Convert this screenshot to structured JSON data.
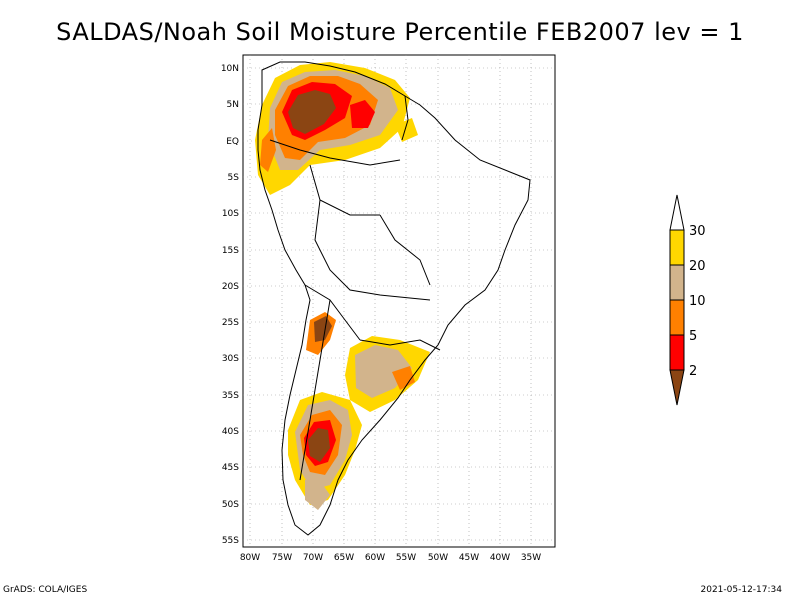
{
  "title": "SALDAS/Noah Soil Moisture Percentile FEB2007 lev = 1",
  "footer": {
    "left": "GrADS: COLA/IGES",
    "right": "2021-05-12-17:34"
  },
  "axes": {
    "lat_ticks": [
      "10N",
      "5N",
      "EQ",
      "5S",
      "10S",
      "15S",
      "20S",
      "25S",
      "30S",
      "35S",
      "40S",
      "45S",
      "50S",
      "55S"
    ],
    "lon_ticks": [
      "80W",
      "75W",
      "70W",
      "65W",
      "60W",
      "55W",
      "50W",
      "45W",
      "40W",
      "35W"
    ]
  },
  "colorbar": {
    "labels": [
      "2",
      "5",
      "10",
      "20",
      "30"
    ],
    "colors": [
      "#8B4513",
      "#FF0000",
      "#FF8000",
      "#D2B48C",
      "#FFD700",
      "#FFFFFF"
    ]
  }
}
